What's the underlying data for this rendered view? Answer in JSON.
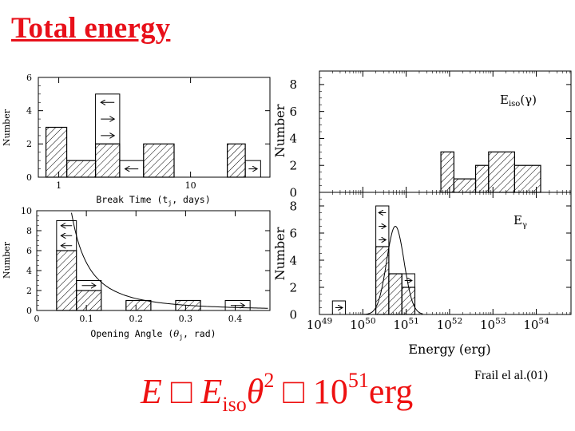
{
  "slide": {
    "title": "Total energy",
    "citation": "Frail el al.(01)",
    "formula": {
      "e": "E",
      "approx1": "□",
      "e2": "E",
      "sub": "iso",
      "theta": "θ",
      "pow": "2",
      "approx2": "□",
      "ten": "10",
      "exp": "51",
      "unit": "erg"
    }
  },
  "colors": {
    "title": "#e8101a",
    "formula": "#ee1111",
    "axes": "#000000"
  },
  "chart_data": [
    {
      "type": "bar",
      "id": "break-time",
      "xlabel": "Break Time (t",
      "xlabel_sub": "j",
      "xlabel_tail": ", days)",
      "ylabel": "Number",
      "xscale": "log",
      "xlim": [
        0.7,
        40
      ],
      "ylim": [
        0,
        6
      ],
      "yticks": [
        0,
        2,
        4,
        6
      ],
      "xticks": [
        {
          "v": 1,
          "label": "1"
        },
        {
          "v": 10,
          "label": "10"
        }
      ],
      "bins": [
        {
          "x0": 0.8,
          "x1": 1.15,
          "count": 3,
          "limits": 0
        },
        {
          "x0": 1.15,
          "x1": 1.9,
          "count": 1,
          "limits": 0
        },
        {
          "x0": 1.9,
          "x1": 2.9,
          "count": 2,
          "limits": 3,
          "arrows": [
            "left",
            "right",
            "right"
          ]
        },
        {
          "x0": 2.9,
          "x1": 4.4,
          "count": 0,
          "limits": 1,
          "arrows": [
            "left"
          ]
        },
        {
          "x0": 4.4,
          "x1": 7.5,
          "count": 2,
          "limits": 0
        },
        {
          "x0": 19,
          "x1": 26,
          "count": 2,
          "limits": 0
        },
        {
          "x0": 26,
          "x1": 34,
          "count": 0,
          "limits": 1,
          "arrows": [
            "right"
          ]
        }
      ]
    },
    {
      "type": "bar",
      "id": "opening-angle",
      "xlabel": "Opening Angle (",
      "xlabel_sym": "θ",
      "xlabel_sub": "j",
      "xlabel_tail": ", rad)",
      "ylabel": "Number",
      "xlim": [
        0,
        0.47
      ],
      "ylim": [
        0,
        10
      ],
      "yticks": [
        0,
        2,
        4,
        6,
        8,
        10
      ],
      "xticks": [
        {
          "v": 0,
          "label": "0"
        },
        {
          "v": 0.1,
          "label": "0.1"
        },
        {
          "v": 0.2,
          "label": "0.2"
        },
        {
          "v": 0.3,
          "label": "0.3"
        },
        {
          "v": 0.4,
          "label": "0.4"
        }
      ],
      "bins": [
        {
          "x0": 0.04,
          "x1": 0.08,
          "count": 6,
          "limits": 3,
          "arrows": [
            "left",
            "left",
            "left"
          ]
        },
        {
          "x0": 0.08,
          "x1": 0.13,
          "count": 2,
          "limits": 1,
          "arrows": [
            "right"
          ]
        },
        {
          "x0": 0.18,
          "x1": 0.23,
          "count": 1,
          "limits": 0
        },
        {
          "x0": 0.28,
          "x1": 0.33,
          "count": 1,
          "limits": 0
        },
        {
          "x0": 0.38,
          "x1": 0.43,
          "count": 0,
          "limits": 1,
          "arrows": [
            "right"
          ]
        }
      ],
      "curve": "0.048 / x^2"
    },
    {
      "type": "bar",
      "id": "e-iso",
      "annotation": "E",
      "annotation_sub": "iso",
      "annotation_tail": "(γ)",
      "ylabel": "Number",
      "xscale": "log",
      "xlim": [
        49,
        54.8
      ],
      "ylim": [
        0,
        9
      ],
      "yticks": [
        0,
        2,
        4,
        6,
        8
      ],
      "bins": [
        {
          "x0": 51.8,
          "x1": 52.1,
          "count": 3,
          "limits": 0
        },
        {
          "x0": 52.1,
          "x1": 52.6,
          "count": 1,
          "limits": 0
        },
        {
          "x0": 52.6,
          "x1": 52.9,
          "count": 2,
          "limits": 0
        },
        {
          "x0": 52.9,
          "x1": 53.5,
          "count": 3,
          "limits": 0
        },
        {
          "x0": 53.5,
          "x1": 54.1,
          "count": 2,
          "limits": 0
        }
      ]
    },
    {
      "type": "bar",
      "id": "e-gamma",
      "annotation": "E",
      "annotation_sub": "γ",
      "xlabel": "Energy (erg)",
      "ylabel": "Number",
      "xscale": "log",
      "xlim": [
        49,
        54.8
      ],
      "ylim": [
        0,
        9
      ],
      "yticks": [
        0,
        2,
        4,
        6,
        8
      ],
      "xticks": [
        {
          "v": 49,
          "label": "10",
          "exp": "49"
        },
        {
          "v": 50,
          "label": "10",
          "exp": "50"
        },
        {
          "v": 51,
          "label": "10",
          "exp": "51"
        },
        {
          "v": 52,
          "label": "10",
          "exp": "52"
        },
        {
          "v": 53,
          "label": "10",
          "exp": "53"
        },
        {
          "v": 54,
          "label": "10",
          "exp": "54"
        }
      ],
      "bins": [
        {
          "x0": 49.3,
          "x1": 49.6,
          "count": 0,
          "limits": 1,
          "arrows": [
            "right"
          ]
        },
        {
          "x0": 50.3,
          "x1": 50.6,
          "count": 5,
          "limits": 3,
          "arrows": [
            "left",
            "right",
            "right"
          ]
        },
        {
          "x0": 50.6,
          "x1": 50.9,
          "count": 3,
          "limits": 0
        },
        {
          "x0": 50.9,
          "x1": 51.2,
          "count": 2,
          "limits": 1,
          "arrows": [
            "right"
          ]
        }
      ],
      "curve": "gaussian mean 50.75 sigma 0.2 peak 6.5"
    }
  ]
}
